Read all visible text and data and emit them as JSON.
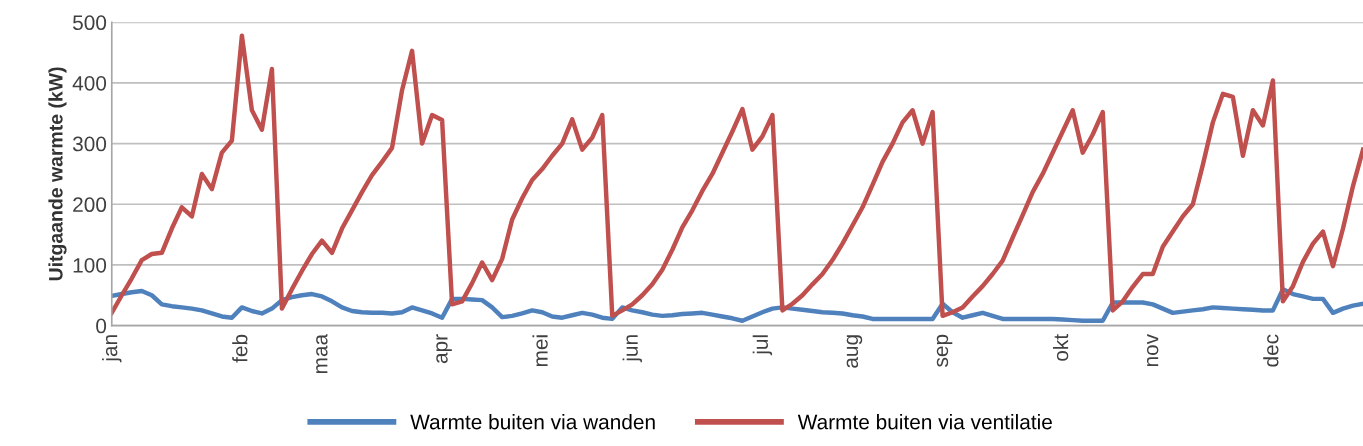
{
  "chart_data": {
    "type": "line",
    "ylabel": "Uitgaande warmte (kW)",
    "categories": [
      "jan",
      null,
      null,
      null,
      null,
      null,
      null,
      null,
      null,
      null,
      null,
      null,
      null,
      "feb",
      null,
      null,
      null,
      null,
      null,
      null,
      null,
      "maa",
      null,
      null,
      null,
      null,
      null,
      null,
      null,
      null,
      null,
      null,
      null,
      "apr",
      null,
      null,
      null,
      null,
      null,
      null,
      null,
      null,
      null,
      "mei",
      null,
      null,
      null,
      null,
      null,
      null,
      null,
      null,
      "jun",
      null,
      null,
      null,
      null,
      null,
      null,
      null,
      null,
      null,
      null,
      null,
      null,
      "jul",
      null,
      null,
      null,
      null,
      null,
      null,
      null,
      null,
      "aug",
      null,
      null,
      null,
      null,
      null,
      null,
      null,
      null,
      "sep",
      null,
      null,
      null,
      null,
      null,
      null,
      null,
      null,
      null,
      null,
      null,
      "okt",
      null,
      null,
      null,
      null,
      null,
      null,
      null,
      null,
      "nov",
      null,
      null,
      null,
      null,
      null,
      null,
      null,
      null,
      null,
      null,
      null,
      "dec",
      null,
      null,
      null,
      null,
      null,
      null,
      null,
      null,
      null
    ],
    "ylim": [
      0,
      500
    ],
    "yticks": [
      0,
      100,
      200,
      300,
      400,
      500
    ],
    "grid": "y",
    "legend": "bottom",
    "marker": "none",
    "line_style": "solid",
    "series": [
      {
        "name": "Warmte buiten via wanden",
        "color": "#4f81bd",
        "values": [
          49,
          52,
          55,
          57,
          50,
          35,
          32,
          30,
          28,
          25,
          20,
          15,
          13,
          30,
          24,
          20,
          28,
          42,
          47,
          50,
          52,
          48,
          40,
          30,
          24,
          22,
          21,
          21,
          20,
          22,
          30,
          25,
          20,
          13,
          44,
          44,
          43,
          42,
          30,
          14,
          16,
          20,
          25,
          22,
          15,
          13,
          17,
          21,
          18,
          13,
          11,
          30,
          25,
          22,
          18,
          16,
          17,
          19,
          20,
          21,
          18,
          15,
          12,
          8,
          15,
          22,
          28,
          30,
          28,
          26,
          24,
          22,
          21,
          20,
          17,
          15,
          11,
          11,
          11,
          11,
          11,
          11,
          11,
          36,
          22,
          13,
          17,
          21,
          16,
          11,
          11,
          11,
          11,
          11,
          11,
          10,
          9,
          8,
          8,
          8,
          38,
          38,
          38,
          38,
          35,
          28,
          21,
          23,
          25,
          27,
          30,
          29,
          28,
          27,
          26,
          25,
          25,
          60,
          52,
          48,
          44,
          44,
          21,
          28,
          33,
          36
        ]
      },
      {
        "name": "Warmte buiten via ventilatie",
        "color": "#c0504d",
        "values": [
          21,
          50,
          78,
          108,
          118,
          120,
          160,
          195,
          180,
          250,
          225,
          285,
          305,
          478,
          355,
          323,
          423,
          28,
          60,
          90,
          118,
          140,
          120,
          160,
          190,
          220,
          248,
          270,
          293,
          388,
          453,
          300,
          347,
          339,
          35,
          40,
          70,
          104,
          75,
          110,
          175,
          210,
          240,
          258,
          280,
          300,
          340,
          290,
          310,
          347,
          16,
          25,
          35,
          50,
          68,
          92,
          125,
          162,
          190,
          222,
          250,
          285,
          320,
          357,
          290,
          312,
          347,
          25,
          36,
          50,
          68,
          85,
          108,
          135,
          165,
          195,
          232,
          270,
          300,
          335,
          355,
          300,
          352,
          16,
          22,
          30,
          48,
          65,
          85,
          107,
          145,
          182,
          220,
          250,
          285,
          320,
          355,
          285,
          315,
          352,
          25,
          40,
          64,
          85,
          85,
          130,
          155,
          180,
          200,
          265,
          335,
          382,
          377,
          280,
          355,
          330,
          404,
          40,
          65,
          105,
          135,
          155,
          98,
          160,
          230,
          290
        ]
      }
    ]
  }
}
